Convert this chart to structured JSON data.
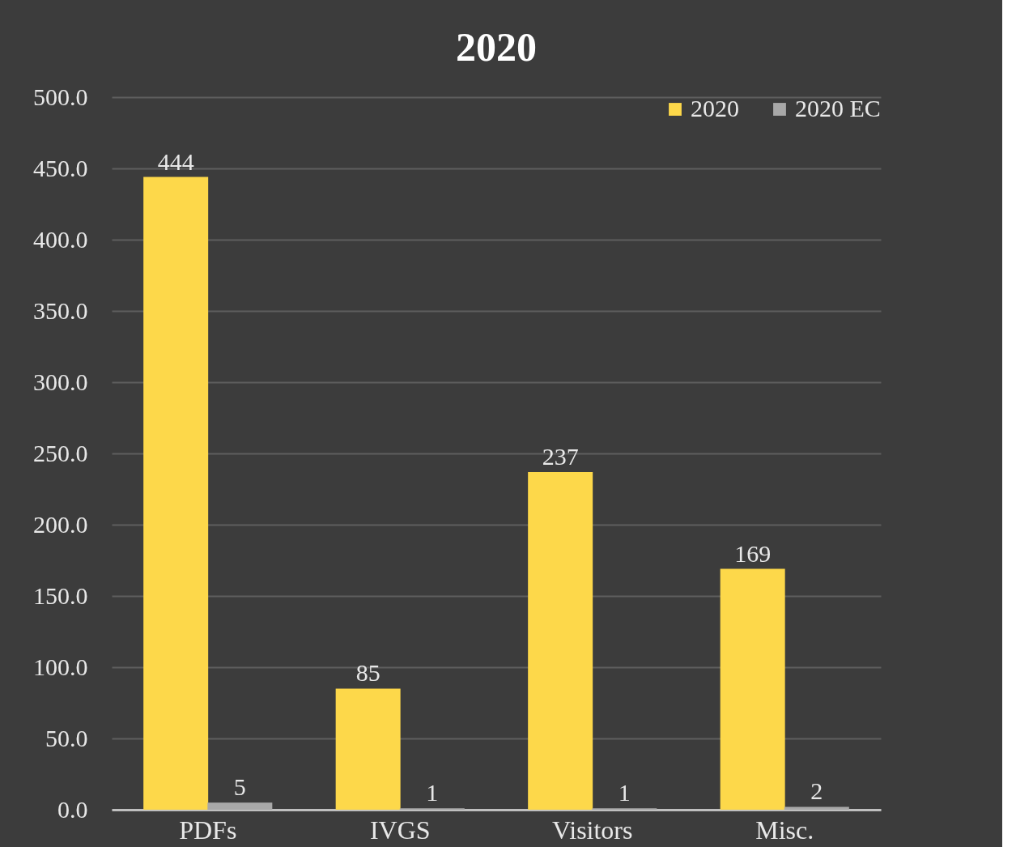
{
  "chart_data": {
    "type": "bar",
    "title": "2020",
    "categories": [
      "PDFs",
      "IVGS",
      "Visitors",
      "Misc."
    ],
    "series": [
      {
        "name": "2020",
        "color": "#fdd84a",
        "values": [
          444,
          85,
          237,
          169
        ]
      },
      {
        "name": "2020 EC",
        "color": "#a8a8a8",
        "values": [
          5,
          1,
          1,
          2
        ]
      }
    ],
    "ylim": [
      0,
      500
    ],
    "yticks": [
      {
        "value": 0,
        "label": "0.0"
      },
      {
        "value": 50,
        "label": "50.0"
      },
      {
        "value": 100,
        "label": "100.0"
      },
      {
        "value": 150,
        "label": "150.0"
      },
      {
        "value": 200,
        "label": "200.0"
      },
      {
        "value": 250,
        "label": "250.0"
      },
      {
        "value": 300,
        "label": "300.0"
      },
      {
        "value": 350,
        "label": "350.0"
      },
      {
        "value": 400,
        "label": "400.0"
      },
      {
        "value": 450,
        "label": "450.0"
      },
      {
        "value": 500,
        "label": "500.0"
      }
    ],
    "grid": "y",
    "legend": "top right",
    "data_labels": true
  }
}
